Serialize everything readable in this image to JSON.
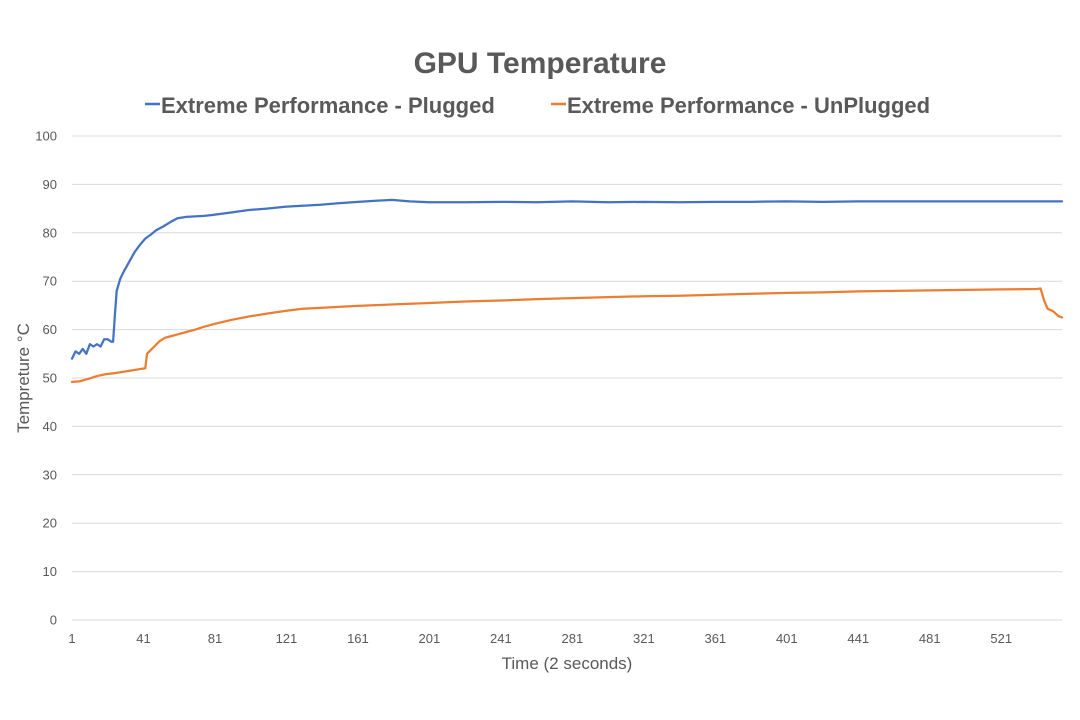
{
  "chart_data": {
    "type": "line",
    "title": "GPU Temperature",
    "xlabel": "Time (2 seconds)",
    "ylabel": "Tempreture °C",
    "xlim": [
      1,
      555
    ],
    "ylim": [
      0,
      100
    ],
    "y_ticks": [
      0,
      10,
      20,
      30,
      40,
      50,
      60,
      70,
      80,
      90,
      100
    ],
    "x_ticks": [
      1,
      41,
      81,
      121,
      161,
      201,
      241,
      281,
      321,
      361,
      401,
      441,
      481,
      521
    ],
    "grid": "horizontal",
    "legend_position": "top",
    "series": [
      {
        "name": "Extreme Performance - Plugged",
        "color": "#4472c4",
        "points": [
          [
            1,
            54
          ],
          [
            3,
            55.5
          ],
          [
            5,
            55
          ],
          [
            7,
            56
          ],
          [
            9,
            55
          ],
          [
            11,
            57
          ],
          [
            13,
            56.5
          ],
          [
            15,
            57
          ],
          [
            17,
            56.5
          ],
          [
            19,
            58
          ],
          [
            21,
            58
          ],
          [
            23,
            57.5
          ],
          [
            24,
            57.5
          ],
          [
            25,
            63
          ],
          [
            26,
            68
          ],
          [
            28,
            70.5
          ],
          [
            30,
            72
          ],
          [
            33,
            74
          ],
          [
            36,
            76
          ],
          [
            39,
            77.5
          ],
          [
            42,
            78.8
          ],
          [
            45,
            79.6
          ],
          [
            48,
            80.5
          ],
          [
            52,
            81.3
          ],
          [
            56,
            82.2
          ],
          [
            60,
            83
          ],
          [
            65,
            83.3
          ],
          [
            70,
            83.4
          ],
          [
            75,
            83.5
          ],
          [
            80,
            83.7
          ],
          [
            90,
            84.2
          ],
          [
            100,
            84.7
          ],
          [
            110,
            85
          ],
          [
            121,
            85.4
          ],
          [
            130,
            85.6
          ],
          [
            140,
            85.8
          ],
          [
            150,
            86.1
          ],
          [
            161,
            86.4
          ],
          [
            170,
            86.6
          ],
          [
            180,
            86.8
          ],
          [
            190,
            86.5
          ],
          [
            201,
            86.3
          ],
          [
            221,
            86.3
          ],
          [
            241,
            86.4
          ],
          [
            261,
            86.3
          ],
          [
            281,
            86.5
          ],
          [
            301,
            86.3
          ],
          [
            321,
            86.4
          ],
          [
            341,
            86.3
          ],
          [
            361,
            86.4
          ],
          [
            381,
            86.4
          ],
          [
            401,
            86.5
          ],
          [
            421,
            86.4
          ],
          [
            441,
            86.5
          ],
          [
            461,
            86.5
          ],
          [
            481,
            86.5
          ],
          [
            501,
            86.5
          ],
          [
            521,
            86.5
          ],
          [
            541,
            86.5
          ],
          [
            555,
            86.5
          ]
        ]
      },
      {
        "name": "Extreme Performance - UnPlugged",
        "color": "#ed7d31",
        "points": [
          [
            1,
            49.2
          ],
          [
            5,
            49.3
          ],
          [
            10,
            49.8
          ],
          [
            15,
            50.4
          ],
          [
            20,
            50.8
          ],
          [
            25,
            51
          ],
          [
            30,
            51.3
          ],
          [
            35,
            51.6
          ],
          [
            40,
            51.9
          ],
          [
            42,
            52
          ],
          [
            43,
            55
          ],
          [
            47,
            56.5
          ],
          [
            50,
            57.6
          ],
          [
            53,
            58.3
          ],
          [
            56,
            58.6
          ],
          [
            60,
            59
          ],
          [
            65,
            59.5
          ],
          [
            70,
            60
          ],
          [
            75,
            60.6
          ],
          [
            81,
            61.2
          ],
          [
            90,
            62
          ],
          [
            100,
            62.7
          ],
          [
            110,
            63.3
          ],
          [
            121,
            63.9
          ],
          [
            130,
            64.3
          ],
          [
            140,
            64.5
          ],
          [
            150,
            64.7
          ],
          [
            161,
            64.9
          ],
          [
            181,
            65.2
          ],
          [
            201,
            65.5
          ],
          [
            221,
            65.8
          ],
          [
            241,
            66
          ],
          [
            261,
            66.3
          ],
          [
            281,
            66.5
          ],
          [
            301,
            66.7
          ],
          [
            321,
            66.9
          ],
          [
            341,
            67
          ],
          [
            361,
            67.2
          ],
          [
            381,
            67.4
          ],
          [
            401,
            67.6
          ],
          [
            421,
            67.7
          ],
          [
            441,
            67.9
          ],
          [
            461,
            68
          ],
          [
            481,
            68.1
          ],
          [
            501,
            68.2
          ],
          [
            521,
            68.3
          ],
          [
            541,
            68.4
          ],
          [
            543,
            68.5
          ],
          [
            545,
            66
          ],
          [
            547,
            64.3
          ],
          [
            550,
            63.8
          ],
          [
            553,
            62.8
          ],
          [
            555,
            62.5
          ]
        ]
      }
    ]
  }
}
